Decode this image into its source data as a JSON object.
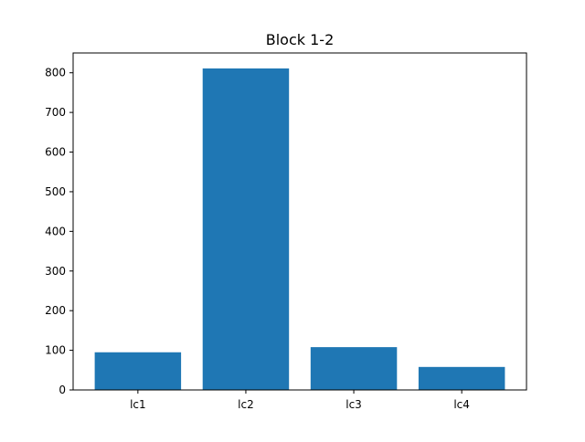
{
  "chart_data": {
    "type": "bar",
    "title": "Block 1-2",
    "xlabel": "",
    "ylabel": "",
    "categories": [
      "lc1",
      "lc2",
      "lc3",
      "lc4"
    ],
    "values": [
      95,
      811,
      108,
      58
    ],
    "ylim": [
      0,
      850
    ],
    "yticks": [
      0,
      100,
      200,
      300,
      400,
      500,
      600,
      700,
      800
    ],
    "grid": false,
    "legend": "none",
    "bar_color": "#1f77b4"
  }
}
